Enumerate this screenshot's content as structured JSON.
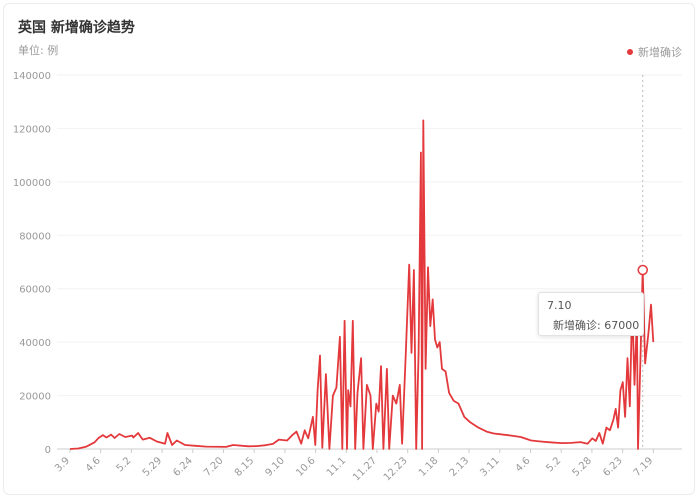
{
  "header": {
    "title": "英国 新增确诊趋势",
    "unit": "单位: 例"
  },
  "colors": {
    "series": "#e4393c",
    "grid": "#f2f2f2",
    "axis": "#cccccc",
    "tick_text": "#999999"
  },
  "tooltip": {
    "date": "7.10",
    "series_label": "新增确诊",
    "value_text": "67000"
  },
  "chart_data": {
    "type": "line",
    "title": "英国 新增确诊趋势",
    "ylabel": "单位: 例",
    "ylim": [
      0,
      140000
    ],
    "yticks": [
      0,
      20000,
      40000,
      60000,
      80000,
      100000,
      120000,
      140000
    ],
    "grid": true,
    "legend_position": "top-right",
    "x_ticks": [
      "3.9",
      "4.6",
      "5.2",
      "5.29",
      "6.24",
      "7.20",
      "8.15",
      "9.10",
      "10.6",
      "11.1",
      "11.27",
      "12.23",
      "1.18",
      "2.13",
      "3.11",
      "4.6",
      "5.2",
      "5.28",
      "6.23",
      "7.19"
    ],
    "series": [
      {
        "name": "新增确诊",
        "points": [
          [
            "3.9",
            0
          ],
          [
            "3.16",
            200
          ],
          [
            "3.23",
            900
          ],
          [
            "3.30",
            2500
          ],
          [
            "4.2",
            4000
          ],
          [
            "4.6",
            5200
          ],
          [
            "4.9",
            4300
          ],
          [
            "4.13",
            5400
          ],
          [
            "4.16",
            4100
          ],
          [
            "4.20",
            5600
          ],
          [
            "4.25",
            4500
          ],
          [
            "5.1",
            5000
          ],
          [
            "5.2",
            4300
          ],
          [
            "5.6",
            6000
          ],
          [
            "5.10",
            3500
          ],
          [
            "5.16",
            4200
          ],
          [
            "5.22",
            2800
          ],
          [
            "5.29",
            2000
          ],
          [
            "5.31",
            6000
          ],
          [
            "6.4",
            1500
          ],
          [
            "6.8",
            3200
          ],
          [
            "6.15",
            1500
          ],
          [
            "6.24",
            1200
          ],
          [
            "7.3",
            900
          ],
          [
            "7.20",
            800
          ],
          [
            "7.26",
            1500
          ],
          [
            "8.8",
            1000
          ],
          [
            "8.15",
            1100
          ],
          [
            "8.22",
            1400
          ],
          [
            "8.29",
            1900
          ],
          [
            "9.3",
            3500
          ],
          [
            "9.10",
            3200
          ],
          [
            "9.14",
            5000
          ],
          [
            "9.18",
            6500
          ],
          [
            "9.22",
            2000
          ],
          [
            "9.25",
            7000
          ],
          [
            "9.28",
            4000
          ],
          [
            "10.2",
            12000
          ],
          [
            "10.4",
            1500
          ],
          [
            "10.6",
            22000
          ],
          [
            "10.8",
            35000
          ],
          [
            "10.10",
            500
          ],
          [
            "10.13",
            28000
          ],
          [
            "10.16",
            0
          ],
          [
            "10.19",
            20000
          ],
          [
            "10.22",
            23000
          ],
          [
            "10.25",
            42000
          ],
          [
            "10.27",
            0
          ],
          [
            "10.29",
            48000
          ],
          [
            "10.31",
            0
          ],
          [
            "11.1",
            22000
          ],
          [
            "11.3",
            16000
          ],
          [
            "11.5",
            48000
          ],
          [
            "11.7",
            0
          ],
          [
            "11.9",
            21000
          ],
          [
            "11.12",
            34000
          ],
          [
            "11.14",
            0
          ],
          [
            "11.17",
            24000
          ],
          [
            "11.20",
            20000
          ],
          [
            "11.22",
            0
          ],
          [
            "11.25",
            17000
          ],
          [
            "11.27",
            14000
          ],
          [
            "11.29",
            31000
          ],
          [
            "12.1",
            0
          ],
          [
            "12.4",
            30000
          ],
          [
            "12.6",
            0
          ],
          [
            "12.9",
            20000
          ],
          [
            "12.12",
            17000
          ],
          [
            "12.15",
            24000
          ],
          [
            "12.17",
            2000
          ],
          [
            "12.20",
            35000
          ],
          [
            "12.23",
            69000
          ],
          [
            "12.25",
            36000
          ],
          [
            "12.27",
            67000
          ],
          [
            "12.29",
            0
          ],
          [
            "12.31",
            36000
          ],
          [
            "1.2",
            111000
          ],
          [
            "1.3",
            0
          ],
          [
            "1.4",
            123000
          ],
          [
            "1.6",
            30000
          ],
          [
            "1.8",
            68000
          ],
          [
            "1.10",
            46000
          ],
          [
            "1.12",
            56000
          ],
          [
            "1.14",
            41000
          ],
          [
            "1.16",
            38000
          ],
          [
            "1.18",
            40000
          ],
          [
            "1.20",
            30000
          ],
          [
            "1.23",
            29000
          ],
          [
            "1.26",
            21000
          ],
          [
            "1.30",
            18000
          ],
          [
            "2.3",
            17000
          ],
          [
            "2.8",
            12000
          ],
          [
            "2.13",
            10000
          ],
          [
            "2.20",
            8000
          ],
          [
            "2.27",
            6500
          ],
          [
            "3.5",
            5800
          ],
          [
            "3.11",
            5500
          ],
          [
            "3.20",
            5000
          ],
          [
            "3.28",
            4500
          ],
          [
            "4.6",
            3200
          ],
          [
            "4.14",
            2800
          ],
          [
            "4.22",
            2500
          ],
          [
            "5.2",
            2200
          ],
          [
            "5.10",
            2300
          ],
          [
            "5.18",
            2600
          ],
          [
            "5.24",
            2000
          ],
          [
            "5.28",
            4000
          ],
          [
            "5.31",
            3000
          ],
          [
            "6.3",
            6000
          ],
          [
            "6.6",
            2000
          ],
          [
            "6.9",
            8000
          ],
          [
            "6.12",
            7000
          ],
          [
            "6.15",
            11000
          ],
          [
            "6.17",
            15000
          ],
          [
            "6.19",
            8000
          ],
          [
            "6.21",
            22000
          ],
          [
            "6.23",
            25000
          ],
          [
            "6.25",
            12000
          ],
          [
            "6.27",
            34000
          ],
          [
            "6.29",
            16000
          ],
          [
            "7.1",
            54000
          ],
          [
            "7.3",
            24000
          ],
          [
            "7.5",
            49000
          ],
          [
            "7.6",
            0
          ],
          [
            "7.8",
            33000
          ],
          [
            "7.10",
            67000
          ],
          [
            "7.12",
            32000
          ],
          [
            "7.15",
            44000
          ],
          [
            "7.17",
            54000
          ],
          [
            "7.19",
            40000
          ]
        ]
      }
    ]
  }
}
